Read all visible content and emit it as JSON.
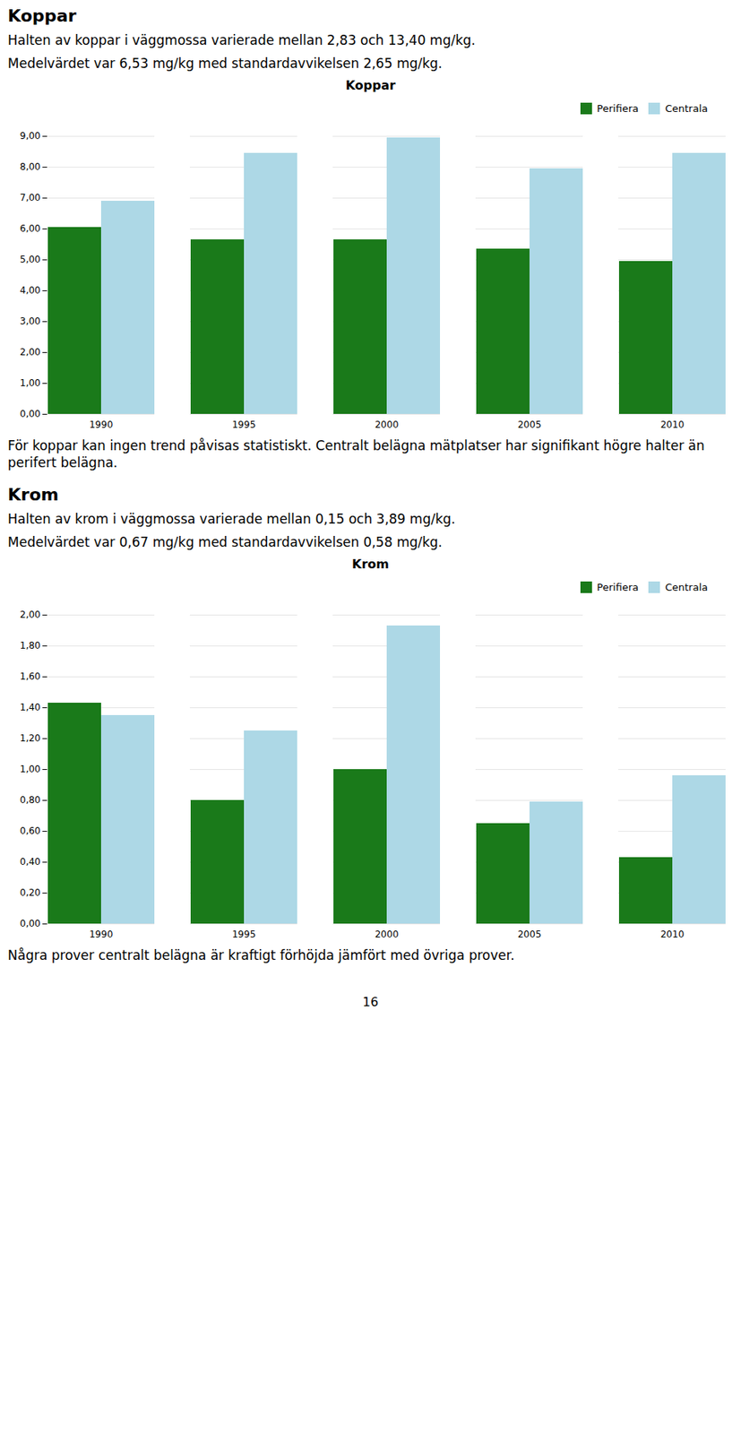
{
  "chart_data": [
    {
      "type": "bar",
      "title": "Koppar",
      "annotations": [
        "Koppar",
        "Halten av koppar i väggmossa varierade mellan 2,83 och 13,40 mg/kg.",
        "Medelvärdet var 6,53 mg/kg med standardavvikelsen 2,65 mg/kg.",
        "För koppar kan ingen trend påvisas statistiskt. Centralt belägna mätplatser har signifikant högre halter än perifert belägna."
      ],
      "categories": [
        "1990",
        "1995",
        "2000",
        "2005",
        "2010"
      ],
      "series": [
        {
          "name": "Perifiera",
          "color": "#1a7a1a",
          "values": [
            6.05,
            5.65,
            5.65,
            5.35,
            4.95
          ]
        },
        {
          "name": "Centrala",
          "color": "#add8e6",
          "values": [
            6.9,
            8.45,
            8.95,
            7.95,
            8.45
          ]
        }
      ],
      "ylim": [
        0,
        9
      ],
      "yticks": [
        {
          "value": 0.0,
          "label": "0,00"
        },
        {
          "value": 1.0,
          "label": "1,00"
        },
        {
          "value": 2.0,
          "label": "2,00"
        },
        {
          "value": 3.0,
          "label": "3,00"
        },
        {
          "value": 4.0,
          "label": "4,00"
        },
        {
          "value": 5.0,
          "label": "5,00"
        },
        {
          "value": 6.0,
          "label": "6,00"
        },
        {
          "value": 7.0,
          "label": "7,00"
        },
        {
          "value": 8.0,
          "label": "8,00"
        },
        {
          "value": 9.0,
          "label": "9,00"
        }
      ],
      "grid": true,
      "legend": "right"
    },
    {
      "type": "bar",
      "title": "Krom",
      "annotations": [
        "Krom",
        "Halten av krom i väggmossa varierade mellan 0,15 och 3,89 mg/kg.",
        "Medelvärdet var 0,67 mg/kg med standardavvikelsen 0,58 mg/kg.",
        "Några prover centralt belägna är kraftigt förhöjda jämfört med övriga prover."
      ],
      "categories": [
        "1990",
        "1995",
        "2000",
        "2005",
        "2010"
      ],
      "series": [
        {
          "name": "Perifiera",
          "color": "#1a7a1a",
          "values": [
            1.43,
            0.8,
            1.0,
            0.65,
            0.43
          ]
        },
        {
          "name": "Centrala",
          "color": "#add8e6",
          "values": [
            1.35,
            1.25,
            1.93,
            0.79,
            0.96
          ]
        }
      ],
      "ylim": [
        0,
        2.0
      ],
      "yticks": [
        {
          "value": 0.0,
          "label": "0,00"
        },
        {
          "value": 0.2,
          "label": "0,20"
        },
        {
          "value": 0.4,
          "label": "0,40"
        },
        {
          "value": 0.6,
          "label": "0,60"
        },
        {
          "value": 0.8,
          "label": "0,80"
        },
        {
          "value": 1.0,
          "label": "1,00"
        },
        {
          "value": 1.2,
          "label": "1,20"
        },
        {
          "value": 1.4,
          "label": "1,40"
        },
        {
          "value": 1.6,
          "label": "1,60"
        },
        {
          "value": 1.8,
          "label": "1,80"
        },
        {
          "value": 2.0,
          "label": "2,00"
        }
      ],
      "grid": true,
      "legend": "right"
    }
  ],
  "annotations": [
    "16"
  ]
}
